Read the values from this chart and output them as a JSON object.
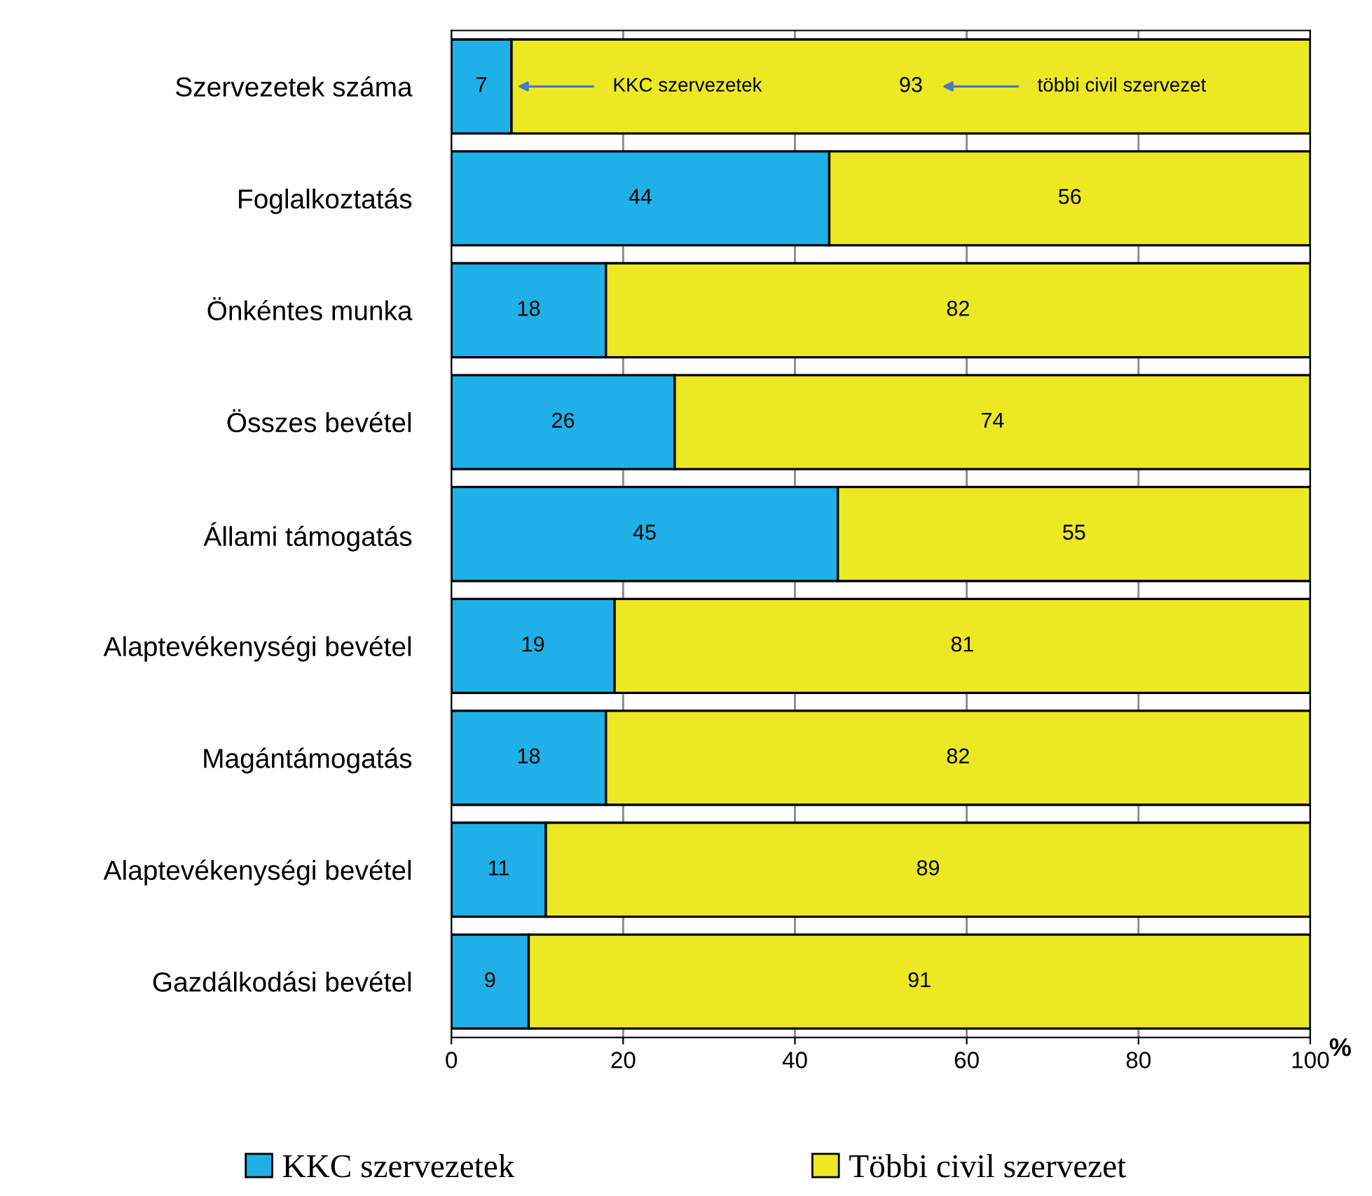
{
  "chart_data": {
    "type": "bar",
    "orientation": "horizontal",
    "stacked": true,
    "xlabel": "%",
    "categories": [
      "Szervezetek száma",
      "Foglalkoztatás",
      "Önkéntes munka",
      "Összes bevétel",
      "Állami támogatás",
      "Alaptevékenységi bevétel",
      "Magántámogatás",
      "Alaptevékenységi bevétel",
      "Gazdálkodási bevétel"
    ],
    "series": [
      {
        "name": "KKC szervezetek",
        "color": "#1eb0e6",
        "values": [
          7,
          44,
          18,
          26,
          45,
          19,
          18,
          11,
          9
        ]
      },
      {
        "name": "Többi civil szervezet",
        "color": "#ece824",
        "values": [
          93,
          56,
          82,
          74,
          55,
          81,
          82,
          89,
          91
        ]
      }
    ],
    "xlim": [
      0,
      100
    ],
    "xticks": [
      0,
      20,
      40,
      60,
      80,
      100
    ],
    "grid": "x",
    "data_labels": true,
    "legend": "bottom",
    "annotations": [
      {
        "text": "KKC szervezetek",
        "x": 7,
        "y": "Szervezetek száma"
      },
      "többi civil szervezet"
    ]
  }
}
